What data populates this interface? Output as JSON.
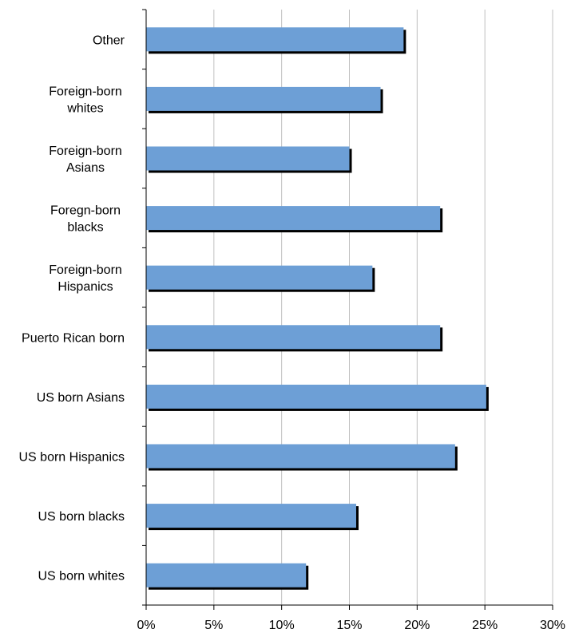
{
  "chart_data": {
    "type": "bar",
    "orientation": "horizontal",
    "categories": [
      [
        "Other"
      ],
      [
        "Foreign-born",
        "whites"
      ],
      [
        "Foreign-born",
        "Asians"
      ],
      [
        "Foregn-born",
        "blacks"
      ],
      [
        "Foreign-born",
        "Hispanics"
      ],
      [
        "Puerto Rican born"
      ],
      [
        "US born Asians"
      ],
      [
        "US born Hispanics"
      ],
      [
        "US born blacks"
      ],
      [
        "US born whites"
      ]
    ],
    "values": [
      19.0,
      17.3,
      15.0,
      21.7,
      16.7,
      21.7,
      25.1,
      22.8,
      15.5,
      11.8
    ],
    "xlim": [
      0,
      30
    ],
    "xticks": [
      "0%",
      "5%",
      "10%",
      "15%",
      "20%",
      "25%",
      "30%"
    ],
    "title": "",
    "xlabel": "",
    "ylabel": "",
    "grid": "vertical",
    "legend": "none",
    "bar_color": "#6d9fd6",
    "bar_shadow_color": "#000000"
  }
}
